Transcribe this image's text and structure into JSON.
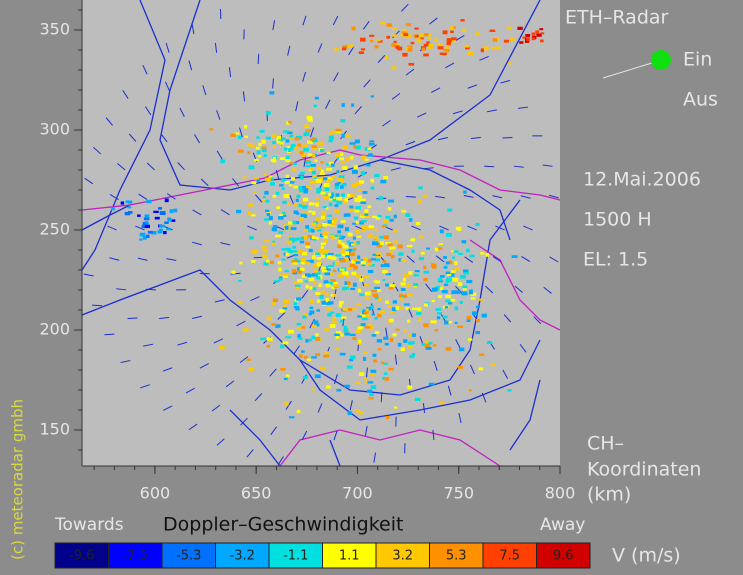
{
  "title": "ETH–Radar",
  "toggle": {
    "on": "Ein",
    "off": "Aus"
  },
  "date": "12.Mai.2006",
  "time": "1500 H",
  "elevation": "EL: 1.5",
  "coords_label": [
    "CH–",
    "Koordinaten",
    "(km)"
  ],
  "copyright": "(c) meteoradar gmbh",
  "axes": {
    "xlim": [
      564,
      800
    ],
    "ylim": [
      132,
      365
    ],
    "xticks": [
      600,
      650,
      700,
      750,
      800
    ],
    "yticks": [
      150,
      200,
      250,
      300,
      350
    ]
  },
  "colorbar": {
    "title": "Doppler–Geschwindigkeit",
    "left": "Towards",
    "right": "Away",
    "unit": "V  (m/s)",
    "values": [
      -9.6,
      -7.5,
      -5.3,
      -3.2,
      -1.1,
      1.1,
      3.2,
      5.3,
      7.5,
      9.6
    ],
    "colors": [
      "#00008b",
      "#0000ff",
      "#0070ff",
      "#00a8ff",
      "#00e0e0",
      "#ffff00",
      "#ffc800",
      "#ff9000",
      "#ff4000",
      "#d00000"
    ]
  }
}
